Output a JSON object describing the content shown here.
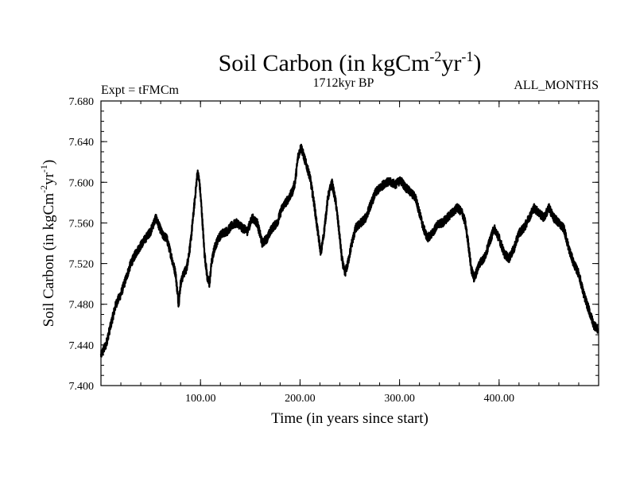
{
  "chart_data": {
    "type": "line",
    "title": {
      "main": "Soil Carbon (in kgCm",
      "sup1": "-2",
      "mid": "yr",
      "sup2": "-1",
      "end": ")"
    },
    "subtitle_left": "Expt = tFMCm",
    "subtitle_center": "1712kyr BP",
    "subtitle_right": "ALL_MONTHS",
    "xlabel": "Time (in years since start)",
    "ylabel": {
      "main": "Soil Carbon (in kgCm",
      "sup1": "-2",
      "mid": "yr",
      "sup2": "-1",
      "end": ")"
    },
    "xlim": [
      0,
      500
    ],
    "ylim": [
      7.4,
      7.68
    ],
    "x_ticks": [
      100,
      200,
      300,
      400
    ],
    "x_tick_labels": [
      "100.00",
      "200.00",
      "300.00",
      "400.00"
    ],
    "y_ticks": [
      7.4,
      7.44,
      7.48,
      7.52,
      7.56,
      7.6,
      7.64,
      7.68
    ],
    "y_tick_labels": [
      "7.400",
      "7.440",
      "7.480",
      "7.520",
      "7.560",
      "7.600",
      "7.640",
      "7.680"
    ],
    "series": [
      {
        "name": "Soil Carbon",
        "color": "#000000",
        "x": [
          0,
          5,
          10,
          15,
          20,
          25,
          30,
          35,
          40,
          45,
          50,
          55,
          58,
          62,
          66,
          70,
          75,
          78,
          80,
          83,
          86,
          90,
          95,
          97,
          99,
          101,
          104,
          107,
          109,
          111,
          114,
          118,
          122,
          127,
          132,
          137,
          142,
          147,
          152,
          157,
          162,
          167,
          172,
          177,
          182,
          187,
          192,
          195,
          198,
          201,
          204,
          207,
          210,
          214,
          218,
          221,
          224,
          228,
          232,
          236,
          240,
          242,
          245,
          248,
          252,
          256,
          261,
          266,
          271,
          276,
          281,
          286,
          291,
          296,
          301,
          306,
          311,
          316,
          320,
          324,
          328,
          333,
          338,
          343,
          348,
          353,
          358,
          363,
          366,
          369,
          372,
          375,
          380,
          385,
          390,
          395,
          400,
          405,
          410,
          415,
          420,
          425,
          430,
          435,
          440,
          445,
          450,
          455,
          460,
          465,
          470,
          475,
          480,
          485,
          490,
          495,
          499
        ],
        "y": [
          7.43,
          7.44,
          7.46,
          7.48,
          7.49,
          7.505,
          7.52,
          7.53,
          7.538,
          7.545,
          7.552,
          7.565,
          7.558,
          7.548,
          7.545,
          7.53,
          7.51,
          7.48,
          7.5,
          7.51,
          7.515,
          7.54,
          7.59,
          7.61,
          7.6,
          7.575,
          7.53,
          7.505,
          7.5,
          7.52,
          7.535,
          7.545,
          7.55,
          7.552,
          7.558,
          7.56,
          7.555,
          7.552,
          7.565,
          7.56,
          7.54,
          7.545,
          7.555,
          7.56,
          7.575,
          7.582,
          7.59,
          7.6,
          7.625,
          7.635,
          7.625,
          7.615,
          7.605,
          7.58,
          7.55,
          7.53,
          7.55,
          7.585,
          7.6,
          7.58,
          7.545,
          7.525,
          7.51,
          7.52,
          7.54,
          7.555,
          7.56,
          7.565,
          7.578,
          7.59,
          7.595,
          7.6,
          7.6,
          7.598,
          7.602,
          7.595,
          7.59,
          7.585,
          7.57,
          7.555,
          7.545,
          7.55,
          7.558,
          7.56,
          7.565,
          7.57,
          7.575,
          7.57,
          7.56,
          7.54,
          7.515,
          7.505,
          7.52,
          7.525,
          7.54,
          7.555,
          7.545,
          7.53,
          7.525,
          7.535,
          7.55,
          7.555,
          7.565,
          7.575,
          7.57,
          7.565,
          7.575,
          7.565,
          7.56,
          7.555,
          7.535,
          7.52,
          7.51,
          7.49,
          7.475,
          7.46,
          7.455
        ]
      }
    ]
  }
}
